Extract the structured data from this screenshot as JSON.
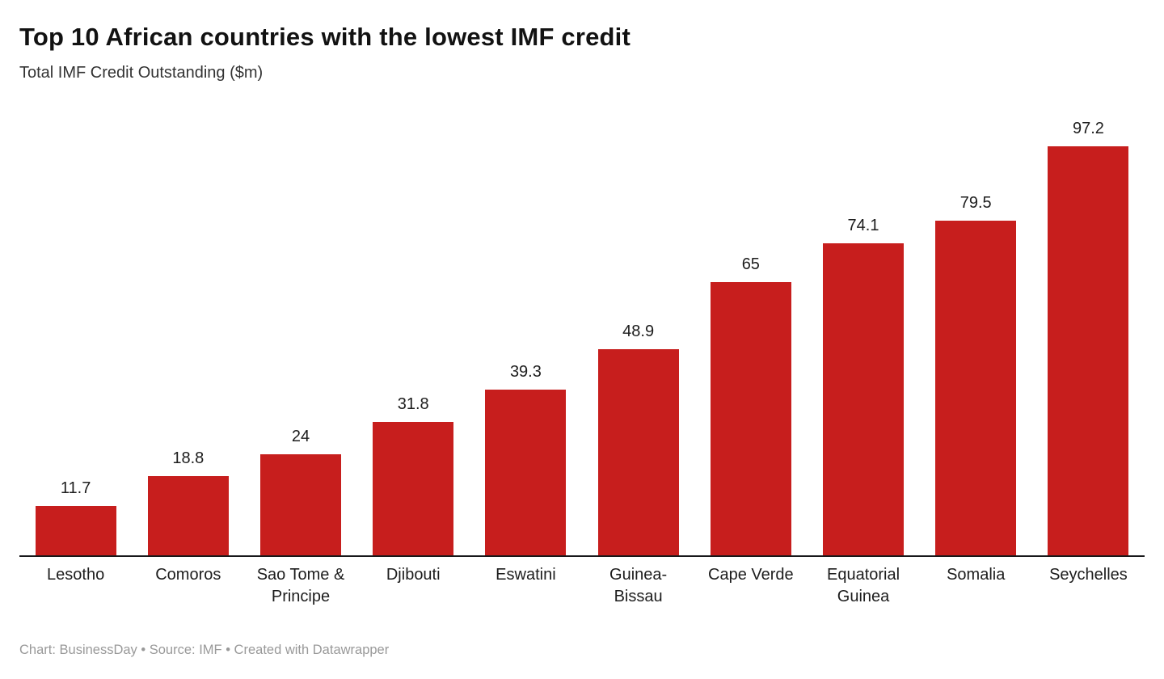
{
  "chart_data": {
    "type": "bar",
    "title": "Top 10 African countries with the lowest IMF credit",
    "subtitle": "Total IMF Credit Outstanding ($m)",
    "categories": [
      "Lesotho",
      "Comoros",
      "Sao Tome & Principe",
      "Djibouti",
      "Eswatini",
      "Guinea-Bissau",
      "Cape Verde",
      "Equatorial Guinea",
      "Somalia",
      "Seychelles"
    ],
    "values": [
      11.7,
      18.8,
      24,
      31.8,
      39.3,
      48.9,
      65,
      74.1,
      79.5,
      97.2
    ],
    "value_labels": [
      "11.7",
      "18.8",
      "24",
      "31.8",
      "39.3",
      "48.9",
      "65",
      "74.1",
      "79.5",
      "97.2"
    ],
    "xlabel": "",
    "ylabel": "Total IMF Credit Outstanding ($m)",
    "ylim": [
      0,
      100
    ],
    "grid": false,
    "legend_position": "none",
    "bar_color": "#c71e1d",
    "axis_color": "#18181a",
    "footer": "Chart: BusinessDay • Source: IMF • Created with Datawrapper"
  }
}
